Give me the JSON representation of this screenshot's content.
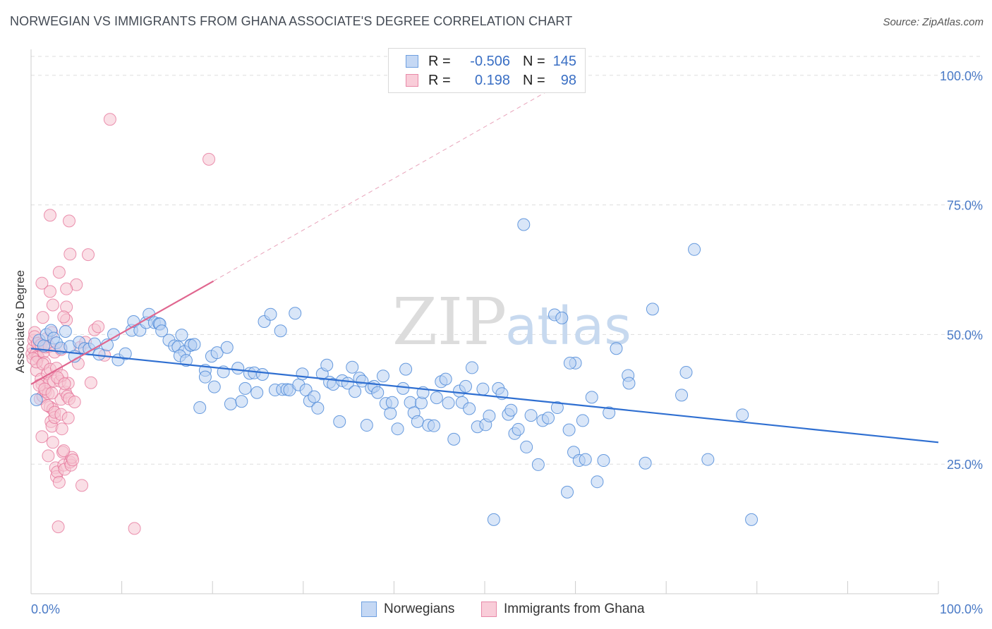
{
  "title": "NORWEGIAN VS IMMIGRANTS FROM GHANA ASSOCIATE'S DEGREE CORRELATION CHART",
  "source": "Source: ZipAtlas.com",
  "watermark": {
    "zip": "ZIP",
    "atlas": "atlas"
  },
  "legend": {
    "rows": [
      {
        "r_label": "R =",
        "r_value": "-0.506",
        "n_label": "N =",
        "n_value": "145",
        "color": "#6fa0e0",
        "fill": "#c5d8f4"
      },
      {
        "r_label": "R =",
        "r_value": "0.198",
        "n_label": "N =",
        "n_value": "98",
        "color": "#e889a8",
        "fill": "#f9cdd9"
      }
    ]
  },
  "bottom_legend": {
    "norwegians": "Norwegians",
    "ghana": "Immigrants from Ghana"
  },
  "chart_data": {
    "type": "scatter",
    "title": "NORWEGIAN VS IMMIGRANTS FROM GHANA ASSOCIATE'S DEGREE CORRELATION CHART",
    "xlabel": "",
    "ylabel": "Associate's Degree",
    "xlim": [
      0,
      100
    ],
    "ylim": [
      0,
      105
    ],
    "x_tick_labels": [
      "0.0%",
      "100.0%"
    ],
    "y_ticks": [
      25,
      50,
      75,
      100
    ],
    "y_tick_labels": [
      "25.0%",
      "50.0%",
      "75.0%",
      "100.0%"
    ],
    "grid": true,
    "series": [
      {
        "name": "Norwegians",
        "color": "#4d8ad8",
        "fill": "#b9d1f2",
        "trend": {
          "x": [
            0,
            100
          ],
          "y": [
            47.3,
            29.2
          ]
        },
        "points": [
          [
            0.6,
            37.4
          ],
          [
            0.9,
            48.9
          ],
          [
            1.4,
            47.8
          ],
          [
            1.7,
            50.0
          ],
          [
            2.2,
            50.8
          ],
          [
            2.5,
            49.3
          ],
          [
            2.8,
            48.4
          ],
          [
            3.3,
            47.4
          ],
          [
            3.8,
            50.6
          ],
          [
            4.3,
            47.7
          ],
          [
            4.8,
            45.8
          ],
          [
            5.3,
            48.5
          ],
          [
            5.9,
            47.3
          ],
          [
            6.4,
            47.2
          ],
          [
            7.0,
            48.2
          ],
          [
            7.5,
            46.2
          ],
          [
            8.4,
            48.0
          ],
          [
            9.1,
            50.0
          ],
          [
            9.6,
            45.1
          ],
          [
            10.4,
            46.3
          ],
          [
            11.1,
            50.8
          ],
          [
            11.3,
            52.5
          ],
          [
            12.0,
            50.8
          ],
          [
            12.7,
            52.3
          ],
          [
            13.0,
            53.9
          ],
          [
            13.6,
            52.3
          ],
          [
            14.1,
            52.1
          ],
          [
            14.2,
            52.0
          ],
          [
            14.4,
            50.7
          ],
          [
            15.2,
            48.9
          ],
          [
            15.8,
            47.8
          ],
          [
            16.2,
            47.6
          ],
          [
            16.6,
            49.9
          ],
          [
            17.6,
            48.0
          ],
          [
            16.9,
            46.7
          ],
          [
            16.4,
            45.9
          ],
          [
            17.1,
            45.0
          ],
          [
            17.6,
            47.9
          ],
          [
            18.0,
            48.1
          ],
          [
            18.6,
            35.9
          ],
          [
            19.2,
            43.1
          ],
          [
            19.2,
            41.8
          ],
          [
            19.9,
            45.8
          ],
          [
            20.2,
            39.9
          ],
          [
            20.5,
            46.5
          ],
          [
            21.2,
            42.8
          ],
          [
            21.6,
            47.5
          ],
          [
            22.0,
            36.6
          ],
          [
            22.8,
            43.5
          ],
          [
            23.2,
            37.1
          ],
          [
            23.6,
            39.6
          ],
          [
            24.1,
            42.5
          ],
          [
            24.6,
            42.6
          ],
          [
            24.9,
            38.8
          ],
          [
            25.5,
            42.3
          ],
          [
            25.7,
            52.5
          ],
          [
            26.4,
            53.9
          ],
          [
            26.9,
            39.3
          ],
          [
            27.5,
            50.7
          ],
          [
            27.7,
            39.4
          ],
          [
            28.2,
            39.4
          ],
          [
            28.5,
            39.3
          ],
          [
            29.1,
            54.1
          ],
          [
            29.5,
            40.3
          ],
          [
            29.9,
            42.4
          ],
          [
            30.3,
            39.3
          ],
          [
            30.7,
            37.2
          ],
          [
            31.2,
            38.0
          ],
          [
            31.6,
            35.8
          ],
          [
            32.1,
            42.4
          ],
          [
            32.6,
            44.1
          ],
          [
            32.9,
            40.8
          ],
          [
            33.3,
            40.4
          ],
          [
            34.0,
            33.2
          ],
          [
            34.3,
            41.1
          ],
          [
            34.9,
            40.6
          ],
          [
            35.4,
            43.7
          ],
          [
            35.7,
            39.0
          ],
          [
            36.2,
            41.6
          ],
          [
            36.5,
            41.0
          ],
          [
            37.0,
            32.5
          ],
          [
            37.5,
            39.7
          ],
          [
            37.8,
            40.0
          ],
          [
            38.2,
            38.8
          ],
          [
            38.8,
            42.0
          ],
          [
            39.1,
            36.7
          ],
          [
            39.6,
            34.8
          ],
          [
            39.8,
            36.9
          ],
          [
            40.4,
            31.8
          ],
          [
            41.0,
            39.6
          ],
          [
            41.3,
            43.3
          ],
          [
            41.8,
            36.9
          ],
          [
            42.2,
            34.9
          ],
          [
            42.6,
            33.2
          ],
          [
            43.0,
            36.8
          ],
          [
            43.2,
            38.8
          ],
          [
            43.8,
            32.5
          ],
          [
            44.4,
            32.4
          ],
          [
            44.7,
            37.8
          ],
          [
            45.2,
            40.9
          ],
          [
            45.7,
            41.4
          ],
          [
            46.0,
            36.8
          ],
          [
            46.6,
            29.8
          ],
          [
            47.2,
            39.1
          ],
          [
            47.5,
            36.9
          ],
          [
            47.9,
            40.0
          ],
          [
            48.3,
            35.7
          ],
          [
            48.6,
            43.6
          ],
          [
            49.2,
            32.2
          ],
          [
            49.8,
            39.5
          ],
          [
            50.1,
            32.6
          ],
          [
            50.5,
            34.3
          ],
          [
            51.0,
            14.3
          ],
          [
            51.5,
            39.6
          ],
          [
            51.9,
            38.6
          ],
          [
            52.6,
            34.6
          ],
          [
            52.9,
            35.4
          ],
          [
            53.3,
            30.9
          ],
          [
            53.7,
            31.7
          ],
          [
            54.3,
            71.2
          ],
          [
            54.6,
            28.3
          ],
          [
            55.1,
            34.4
          ],
          [
            55.9,
            24.9
          ],
          [
            56.4,
            33.4
          ],
          [
            57.0,
            33.9
          ],
          [
            57.7,
            53.8
          ],
          [
            58.0,
            35.9
          ],
          [
            58.5,
            53.2
          ],
          [
            59.1,
            19.6
          ],
          [
            59.3,
            31.6
          ],
          [
            59.8,
            27.3
          ],
          [
            60.4,
            25.7
          ],
          [
            60.8,
            33.4
          ],
          [
            61.1,
            25.9
          ],
          [
            61.8,
            37.9
          ],
          [
            62.4,
            21.6
          ],
          [
            63.7,
            34.9
          ],
          [
            64.5,
            47.3
          ],
          [
            65.8,
            42.1
          ],
          [
            65.9,
            40.6
          ],
          [
            67.7,
            25.2
          ],
          [
            68.5,
            54.9
          ],
          [
            71.7,
            38.3
          ],
          [
            72.2,
            42.7
          ],
          [
            73.1,
            66.4
          ],
          [
            74.6,
            25.9
          ],
          [
            78.4,
            34.5
          ],
          [
            79.4,
            14.3
          ],
          [
            63.1,
            25.7
          ],
          [
            60.0,
            44.5
          ],
          [
            59.4,
            44.5
          ]
        ]
      },
      {
        "name": "Immigrants from Ghana",
        "color": "#e46f96",
        "fill": "#f6c4d2",
        "trend": {
          "x": [
            0,
            20.1
          ],
          "y": [
            40.4,
            60.3
          ]
        },
        "trend_extension": {
          "x": [
            20.1,
            60
          ],
          "y": [
            60.3,
            100
          ]
        },
        "points": [
          [
            0.1,
            46.3
          ],
          [
            0.2,
            47.4
          ],
          [
            0.3,
            48.9
          ],
          [
            0.4,
            50.4
          ],
          [
            0.5,
            46.2
          ],
          [
            0.6,
            43.1
          ],
          [
            0.7,
            45.8
          ],
          [
            0.8,
            45.6
          ],
          [
            0.9,
            47.9
          ],
          [
            1.0,
            37.6
          ],
          [
            1.1,
            41.4
          ],
          [
            1.2,
            40.4
          ],
          [
            1.3,
            38.1
          ],
          [
            1.4,
            46.6
          ],
          [
            1.5,
            44.6
          ],
          [
            1.6,
            39.0
          ],
          [
            1.7,
            49.2
          ],
          [
            1.8,
            42.5
          ],
          [
            1.9,
            38.6
          ],
          [
            2.0,
            40.7
          ],
          [
            2.1,
            36.0
          ],
          [
            2.2,
            33.2
          ],
          [
            2.3,
            32.3
          ],
          [
            2.4,
            35.6
          ],
          [
            2.5,
            41.0
          ],
          [
            2.6,
            34.0
          ],
          [
            2.7,
            24.3
          ],
          [
            2.8,
            22.6
          ],
          [
            2.9,
            23.5
          ],
          [
            3.0,
            12.9
          ],
          [
            3.1,
            21.5
          ],
          [
            3.2,
            41.0
          ],
          [
            3.3,
            37.5
          ],
          [
            3.4,
            31.8
          ],
          [
            3.5,
            27.3
          ],
          [
            3.6,
            24.8
          ],
          [
            3.7,
            24.0
          ],
          [
            3.8,
            38.9
          ],
          [
            3.9,
            52.8
          ],
          [
            4.0,
            38.1
          ],
          [
            4.1,
            40.6
          ],
          [
            4.2,
            37.6
          ],
          [
            4.3,
            25.4
          ],
          [
            4.4,
            24.8
          ],
          [
            4.5,
            26.3
          ],
          [
            4.6,
            25.8
          ],
          [
            4.8,
            37.0
          ],
          [
            5.0,
            59.6
          ],
          [
            5.2,
            44.4
          ],
          [
            5.4,
            47.5
          ],
          [
            5.6,
            20.9
          ],
          [
            6.0,
            48.5
          ],
          [
            6.3,
            65.4
          ],
          [
            6.6,
            40.7
          ],
          [
            7.0,
            50.9
          ],
          [
            7.4,
            51.5
          ],
          [
            8.1,
            46.0
          ],
          [
            8.7,
            91.5
          ],
          [
            11.4,
            12.6
          ],
          [
            19.6,
            83.8
          ],
          [
            2.1,
            73.0
          ],
          [
            4.2,
            71.9
          ],
          [
            4.3,
            65.5
          ],
          [
            3.1,
            62.0
          ],
          [
            1.2,
            59.9
          ],
          [
            2.1,
            58.3
          ],
          [
            3.9,
            58.8
          ],
          [
            2.4,
            55.7
          ],
          [
            3.9,
            55.3
          ],
          [
            1.3,
            53.3
          ],
          [
            3.6,
            53.4
          ],
          [
            2.3,
            50.4
          ],
          [
            0.4,
            49.6
          ],
          [
            0.7,
            48.3
          ],
          [
            1.1,
            48.0
          ],
          [
            1.6,
            47.6
          ],
          [
            2.0,
            47.7
          ],
          [
            2.6,
            46.6
          ],
          [
            3.3,
            47.1
          ],
          [
            0.2,
            45.4
          ],
          [
            0.6,
            44.7
          ],
          [
            1.3,
            44.3
          ],
          [
            2.1,
            43.3
          ],
          [
            2.8,
            43.5
          ],
          [
            3.4,
            42.1
          ],
          [
            0.9,
            40.2
          ],
          [
            1.5,
            39.5
          ],
          [
            2.3,
            38.7
          ],
          [
            2.9,
            41.7
          ],
          [
            3.7,
            40.5
          ],
          [
            1.8,
            36.3
          ],
          [
            2.6,
            35.0
          ],
          [
            3.3,
            34.6
          ],
          [
            4.1,
            33.9
          ],
          [
            1.2,
            30.3
          ],
          [
            2.4,
            29.2
          ],
          [
            3.6,
            27.6
          ],
          [
            1.9,
            26.6
          ]
        ]
      }
    ]
  }
}
